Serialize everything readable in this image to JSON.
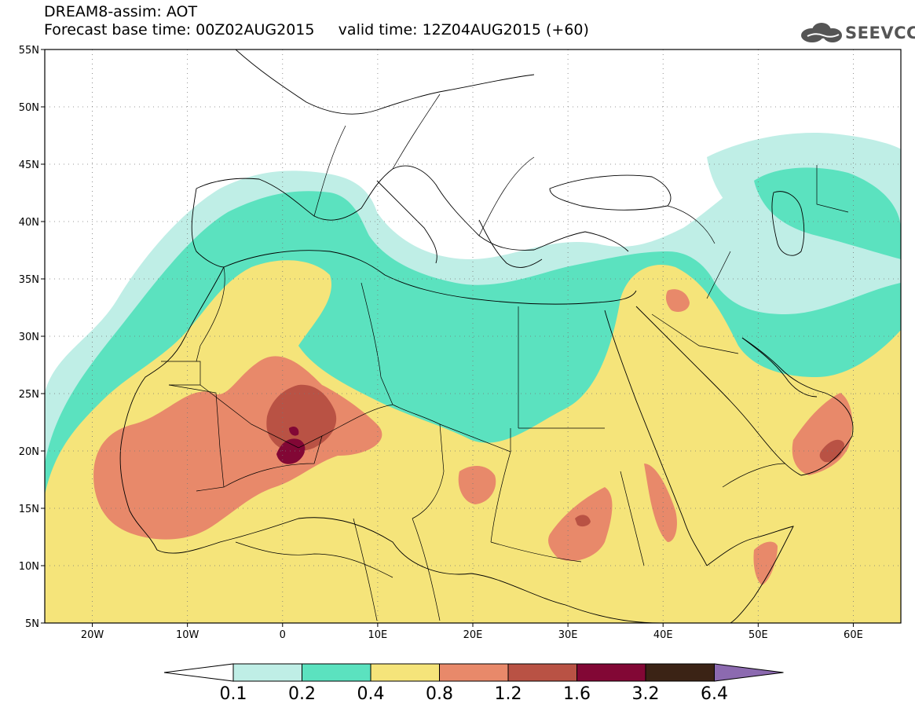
{
  "header": {
    "line1": "DREAM8-assim: AOT",
    "line2": "Forecast base time: 00Z02AUG2015     valid time: 12Z04AUG2015 (+60)"
  },
  "logo": {
    "text": "SEEVCCC",
    "icon": "cloud-icon"
  },
  "map": {
    "lon_range": [
      -25,
      65
    ],
    "lat_range": [
      5,
      55
    ],
    "lat_labels": [
      "55N",
      "50N",
      "45N",
      "40N",
      "35N",
      "30N",
      "25N",
      "20N",
      "15N",
      "10N",
      "5N"
    ],
    "lon_labels": [
      "20W",
      "10W",
      "0",
      "10E",
      "20E",
      "30E",
      "40E",
      "50E",
      "60E"
    ],
    "grid": "dotted",
    "colors": {
      "c01": "#bfeee6",
      "c02": "#5be2bf",
      "c04": "#f5e47a",
      "c08": "#e8896a",
      "c12": "#b95244",
      "c16": "#820735",
      "c32": "#3b2315",
      "c64": "#8c6ab0"
    }
  },
  "colorbar": {
    "labels": [
      "0.1",
      "0.2",
      "0.4",
      "0.8",
      "1.2",
      "1.6",
      "3.2",
      "6.4"
    ],
    "colors": [
      "#ffffff",
      "#bfeee6",
      "#5be2bf",
      "#f5e47a",
      "#e8896a",
      "#b95244",
      "#820735",
      "#3b2315",
      "#8c6ab0"
    ]
  }
}
